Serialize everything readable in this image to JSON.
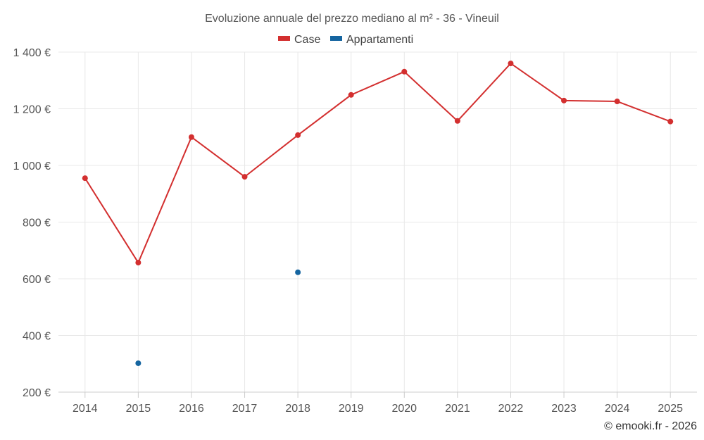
{
  "chart_data": {
    "type": "line",
    "title": "Evoluzione annuale del prezzo mediano al m² - 36 - Vineuil",
    "xlabel": "",
    "ylabel": "",
    "categories": [
      "2014",
      "2015",
      "2016",
      "2017",
      "2018",
      "2019",
      "2020",
      "2021",
      "2022",
      "2023",
      "2024",
      "2025"
    ],
    "ylim": [
      200,
      1400
    ],
    "yticks": [
      200,
      400,
      600,
      800,
      1000,
      1200,
      1400
    ],
    "ytick_labels": [
      "200 €",
      "400 €",
      "600 €",
      "800 €",
      "1 000 €",
      "1 200 €",
      "1 400 €"
    ],
    "legend_position": "top-center",
    "grid": true,
    "series": [
      {
        "name": "Case",
        "color": "#d32f2f",
        "values": [
          955,
          657,
          1100,
          960,
          1107,
          1249,
          1331,
          1157,
          1360,
          1229,
          1226,
          1155
        ]
      },
      {
        "name": "Appartamenti",
        "color": "#1565a0",
        "values": [
          null,
          302,
          null,
          null,
          623,
          null,
          null,
          null,
          null,
          null,
          null,
          null
        ]
      }
    ]
  },
  "credit": "© emooki.fr - 2026"
}
